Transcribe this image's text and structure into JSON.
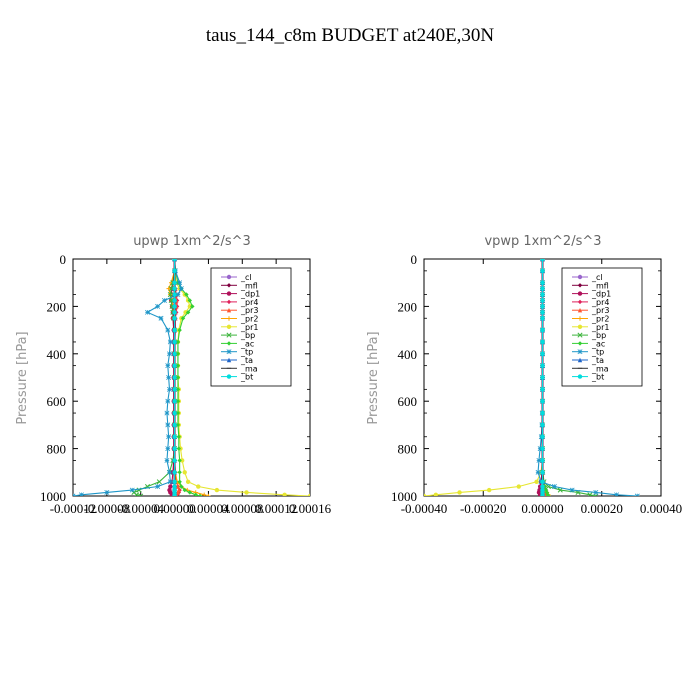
{
  "figure": {
    "title": "taus_144_c8m  BUDGET at240E,30N"
  },
  "colors": {
    "cl": "#9966cc",
    "mfl": "#800040",
    "dp1": "#b0105a",
    "pr4": "#e0205a",
    "pr3": "#ff5530",
    "pr2": "#ffa500",
    "pr1": "#e6e632",
    "bp": "#3cb43c",
    "ac": "#33d033",
    "tp": "#1e96c8",
    "ta": "#1e64c8",
    "ma": "#333333",
    "bt": "#00dddd"
  },
  "chart_data": [
    {
      "type": "line",
      "title": "upwp   1xm^2/s^3",
      "ylabel": "Pressure [hPa]",
      "xlabel": "",
      "xlim": [
        -0.00012,
        0.00016
      ],
      "ylim": [
        1000,
        0
      ],
      "x_tick_labels": [
        "-0.00012",
        "-0.00008",
        "-0.00004",
        "0.00000",
        "0.00004",
        "0.00008",
        "0.00012",
        "0.00016"
      ],
      "y_tick_labels": [
        "0",
        "200",
        "400",
        "600",
        "800",
        "1000"
      ],
      "legend_position": "top-right",
      "legend": [
        "_cl",
        "_mfl",
        "_dp1",
        "_pr4",
        "_pr3",
        "_pr2",
        "_pr1",
        "_bp",
        "_ac",
        "_tp",
        "_ta",
        "_ma",
        "_bt"
      ],
      "pressure": [
        0,
        50,
        100,
        125,
        150,
        175,
        200,
        225,
        250,
        300,
        350,
        400,
        450,
        500,
        550,
        600,
        650,
        700,
        750,
        800,
        850,
        900,
        940,
        960,
        975,
        985,
        995,
        1000
      ],
      "series": [
        {
          "name": "_cl",
          "key": "cl",
          "values": [
            0,
            0,
            0,
            0,
            0,
            0,
            0,
            0,
            0,
            0,
            0,
            0,
            0,
            0,
            0,
            0,
            0,
            0,
            0,
            0,
            0,
            0,
            0,
            0,
            0,
            0,
            0,
            0
          ]
        },
        {
          "name": "_mfl",
          "key": "mfl",
          "values": [
            0,
            0,
            0,
            0,
            0,
            0,
            0,
            0,
            0,
            0,
            0,
            0,
            0,
            0,
            0,
            0,
            0,
            0,
            0,
            0,
            0,
            0,
            0,
            0,
            0,
            0,
            0,
            0
          ]
        },
        {
          "name": "_dp1",
          "key": "dp1",
          "values": [
            0,
            0,
            -2e-06,
            -3e-06,
            -4e-06,
            -4e-06,
            -3e-06,
            -2e-06,
            -2e-06,
            -1e-06,
            -1e-06,
            -1e-06,
            -1e-06,
            -1e-06,
            -1e-06,
            -1e-06,
            -1e-06,
            -1e-06,
            -1e-06,
            -1e-06,
            -1e-06,
            -2e-06,
            -3e-06,
            -5e-06,
            -6e-06,
            -5e-06,
            -3e-06,
            -2e-06
          ]
        },
        {
          "name": "_pr4",
          "key": "pr4",
          "values": [
            0,
            0,
            0,
            1e-06,
            2e-06,
            3e-06,
            3e-06,
            2e-06,
            1e-06,
            1e-06,
            0,
            0,
            0,
            0,
            0,
            0,
            0,
            0,
            0,
            0,
            0,
            1e-06,
            2e-06,
            4e-06,
            6e-06,
            5e-06,
            3e-06,
            1e-06
          ]
        },
        {
          "name": "_pr3",
          "key": "pr3",
          "values": [
            0,
            0,
            0,
            1e-06,
            2e-06,
            2e-06,
            2e-06,
            1e-06,
            1e-06,
            0,
            0,
            0,
            0,
            0,
            0,
            0,
            0,
            0,
            0,
            0,
            0,
            0,
            2e-06,
            4e-06,
            5e-06,
            4e-06,
            2e-06,
            1e-06
          ]
        },
        {
          "name": "_pr2",
          "key": "pr2",
          "values": [
            0,
            0,
            -4e-06,
            -7e-06,
            -5e-06,
            -3e-06,
            -2e-06,
            -1e-06,
            -1e-06,
            0,
            0,
            0,
            0,
            0,
            0,
            0,
            0,
            0,
            0,
            0,
            0,
            1e-06,
            3e-06,
            8e-06,
            1.5e-05,
            2.5e-05,
            3.5e-05,
            4e-05
          ]
        },
        {
          "name": "_pr1",
          "key": "pr1",
          "values": [
            0,
            0,
            2e-06,
            6e-06,
            1.2e-05,
            1.6e-05,
            1.8e-05,
            1.3e-05,
            8e-06,
            5e-06,
            4e-06,
            4e-06,
            4e-06,
            4e-06,
            5e-06,
            5e-06,
            5e-06,
            5e-06,
            6e-06,
            7e-06,
            9e-06,
            1.2e-05,
            1.6e-05,
            2.8e-05,
            5e-05,
            8.5e-05,
            0.00013,
            0.00016
          ]
        },
        {
          "name": "_bp",
          "key": "bp",
          "values": [
            0,
            0,
            -2e-06,
            -4e-06,
            -5e-06,
            -4e-06,
            -3e-06,
            -2e-06,
            -1e-06,
            0,
            0,
            0,
            0,
            0,
            0,
            0,
            0,
            0,
            0,
            0,
            -2e-06,
            -6e-06,
            -1.8e-05,
            -3.2e-05,
            -4.2e-05,
            -4.8e-05,
            -4.5e-05,
            -4e-05
          ]
        },
        {
          "name": "_ac",
          "key": "ac",
          "values": [
            0,
            1e-06,
            4e-06,
            8e-06,
            1.4e-05,
            1.8e-05,
            2.1e-05,
            1.6e-05,
            1e-05,
            6e-06,
            4e-06,
            4e-06,
            4e-06,
            4e-06,
            4e-06,
            4e-06,
            4e-06,
            4e-06,
            5e-06,
            5e-06,
            6e-06,
            6e-06,
            6e-06,
            8e-06,
            1.2e-05,
            1.8e-05,
            2.5e-05,
            3e-05
          ]
        },
        {
          "name": "_tp",
          "key": "tp",
          "values": [
            0,
            1e-06,
            6e-06,
            8e-06,
            4e-06,
            -1.2e-05,
            -2e-05,
            -3.2e-05,
            -1.6e-05,
            -8e-06,
            -5e-06,
            -6e-06,
            -8e-06,
            -7e-06,
            -6e-06,
            -8e-06,
            -9e-06,
            -8e-06,
            -7e-06,
            -8e-06,
            -9e-06,
            -6e-06,
            -5e-06,
            -2e-05,
            -5e-05,
            -8e-05,
            -0.00011,
            -0.00012
          ]
        },
        {
          "name": "_ta",
          "key": "ta",
          "values": [
            0,
            0,
            0,
            0,
            0,
            0,
            0,
            0,
            0,
            0,
            0,
            0,
            0,
            0,
            0,
            0,
            0,
            0,
            0,
            0,
            0,
            0,
            0,
            0,
            0,
            0,
            0,
            0
          ]
        },
        {
          "name": "_ma",
          "key": "ma",
          "values": [
            0,
            0,
            0,
            0,
            0,
            0,
            0,
            0,
            0,
            0,
            0,
            0,
            0,
            0,
            0,
            0,
            0,
            0,
            0,
            0,
            0,
            0,
            0,
            0,
            0,
            0,
            0,
            0
          ]
        },
        {
          "name": "_bt",
          "key": "bt",
          "values": [
            0,
            0,
            0,
            0,
            0,
            0,
            0,
            0,
            0,
            0,
            0,
            0,
            0,
            0,
            0,
            0,
            0,
            0,
            0,
            0,
            0,
            0,
            0,
            0,
            0,
            0,
            0,
            0
          ]
        }
      ]
    },
    {
      "type": "line",
      "title": "vpwp   1xm^2/s^3",
      "ylabel": "Pressure [hPa]",
      "xlabel": "",
      "xlim": [
        -0.0004,
        0.0004
      ],
      "ylim": [
        1000,
        0
      ],
      "x_tick_labels": [
        "-0.00040",
        "-0.00020",
        "0.00000",
        "0.00020",
        "0.00040"
      ],
      "y_tick_labels": [
        "0",
        "200",
        "400",
        "600",
        "800",
        "1000"
      ],
      "legend_position": "top-right",
      "legend": [
        "_cl",
        "_mfl",
        "_dp1",
        "_pr4",
        "_pr3",
        "_pr2",
        "_pr1",
        "_bp",
        "_ac",
        "_tp",
        "_ta",
        "_ma",
        "_bt"
      ],
      "pressure": [
        0,
        50,
        100,
        125,
        150,
        175,
        200,
        225,
        250,
        300,
        350,
        400,
        450,
        500,
        550,
        600,
        650,
        700,
        750,
        800,
        850,
        900,
        940,
        960,
        975,
        985,
        995,
        1000
      ],
      "series": [
        {
          "name": "_cl",
          "key": "cl",
          "values": [
            0,
            0,
            0,
            0,
            0,
            0,
            0,
            0,
            0,
            0,
            0,
            0,
            0,
            0,
            0,
            0,
            0,
            0,
            0,
            0,
            0,
            0,
            0,
            0,
            0,
            0,
            0,
            0
          ]
        },
        {
          "name": "_mfl",
          "key": "mfl",
          "values": [
            0,
            0,
            0,
            0,
            0,
            0,
            0,
            0,
            0,
            0,
            0,
            0,
            0,
            0,
            0,
            0,
            0,
            0,
            0,
            0,
            0,
            0,
            0,
            0,
            0,
            0,
            0,
            0
          ]
        },
        {
          "name": "_dp1",
          "key": "dp1",
          "values": [
            0,
            0,
            0,
            0,
            0,
            0,
            0,
            0,
            0,
            0,
            0,
            0,
            0,
            0,
            0,
            0,
            0,
            0,
            0,
            0,
            0,
            -2e-06,
            -5e-06,
            -8e-06,
            -1e-05,
            -1.2e-05,
            -8e-06,
            -5e-06
          ]
        },
        {
          "name": "_pr4",
          "key": "pr4",
          "values": [
            0,
            0,
            0,
            0,
            0,
            0,
            0,
            0,
            0,
            0,
            0,
            0,
            0,
            0,
            0,
            0,
            0,
            0,
            0,
            0,
            0,
            1e-06,
            4e-06,
            8e-06,
            1.2e-05,
            1.4e-05,
            1e-05,
            6e-06
          ]
        },
        {
          "name": "_pr3",
          "key": "pr3",
          "values": [
            0,
            0,
            0,
            0,
            0,
            0,
            0,
            0,
            0,
            0,
            0,
            0,
            0,
            0,
            0,
            0,
            0,
            0,
            0,
            0,
            0,
            1e-06,
            3e-06,
            6e-06,
            9e-06,
            1e-05,
            8e-06,
            5e-06
          ]
        },
        {
          "name": "_pr2",
          "key": "pr2",
          "values": [
            0,
            0,
            0,
            0,
            0,
            0,
            0,
            0,
            0,
            0,
            0,
            0,
            0,
            0,
            0,
            0,
            0,
            0,
            0,
            0,
            0,
            0,
            2e-06,
            5e-06,
            1e-05,
            1.5e-05,
            2e-05,
            2e-05
          ]
        },
        {
          "name": "_pr1",
          "key": "pr1",
          "values": [
            0,
            0,
            0,
            0,
            0,
            0,
            0,
            0,
            0,
            0,
            0,
            0,
            0,
            0,
            0,
            0,
            0,
            0,
            0,
            0,
            0,
            -5e-06,
            -2e-05,
            -8e-05,
            -0.00018,
            -0.00028,
            -0.00036,
            -0.0004
          ]
        },
        {
          "name": "_bp",
          "key": "bp",
          "values": [
            0,
            0,
            0,
            0,
            0,
            0,
            0,
            0,
            0,
            0,
            0,
            0,
            0,
            0,
            0,
            0,
            0,
            0,
            0,
            0,
            0,
            1e-06,
            5e-06,
            2e-05,
            6e-05,
            0.00012,
            0.00016,
            0.00018
          ]
        },
        {
          "name": "_ac",
          "key": "ac",
          "values": [
            0,
            0,
            0,
            0,
            0,
            0,
            0,
            0,
            0,
            0,
            0,
            0,
            0,
            0,
            0,
            0,
            0,
            0,
            0,
            0,
            0,
            1e-06,
            3e-06,
            8e-06,
            1.2e-05,
            1.5e-05,
            1.8e-05,
            2e-05
          ]
        },
        {
          "name": "_tp",
          "key": "tp",
          "values": [
            0,
            0,
            0,
            0,
            0,
            0,
            0,
            0,
            0,
            0,
            0,
            0,
            0,
            0,
            0,
            0,
            -1e-06,
            -2e-06,
            -4e-06,
            -8e-06,
            -1.2e-05,
            -1.5e-05,
            -5e-06,
            4e-05,
            0.0001,
            0.00018,
            0.00025,
            0.00032
          ]
        },
        {
          "name": "_ta",
          "key": "ta",
          "values": [
            0,
            0,
            0,
            0,
            0,
            0,
            0,
            0,
            0,
            0,
            0,
            0,
            0,
            0,
            0,
            0,
            0,
            0,
            0,
            0,
            0,
            0,
            0,
            0,
            0,
            0,
            0,
            0
          ]
        },
        {
          "name": "_ma",
          "key": "ma",
          "values": [
            0,
            0,
            0,
            0,
            0,
            0,
            0,
            0,
            0,
            0,
            0,
            0,
            0,
            0,
            0,
            0,
            0,
            0,
            0,
            0,
            0,
            0,
            0,
            0,
            0,
            0,
            0,
            0
          ]
        },
        {
          "name": "_bt",
          "key": "bt",
          "values": [
            0,
            0,
            0,
            0,
            0,
            0,
            0,
            0,
            0,
            0,
            0,
            0,
            0,
            0,
            0,
            0,
            0,
            0,
            0,
            0,
            0,
            0,
            0,
            0,
            0,
            0,
            0,
            0
          ]
        }
      ]
    }
  ]
}
